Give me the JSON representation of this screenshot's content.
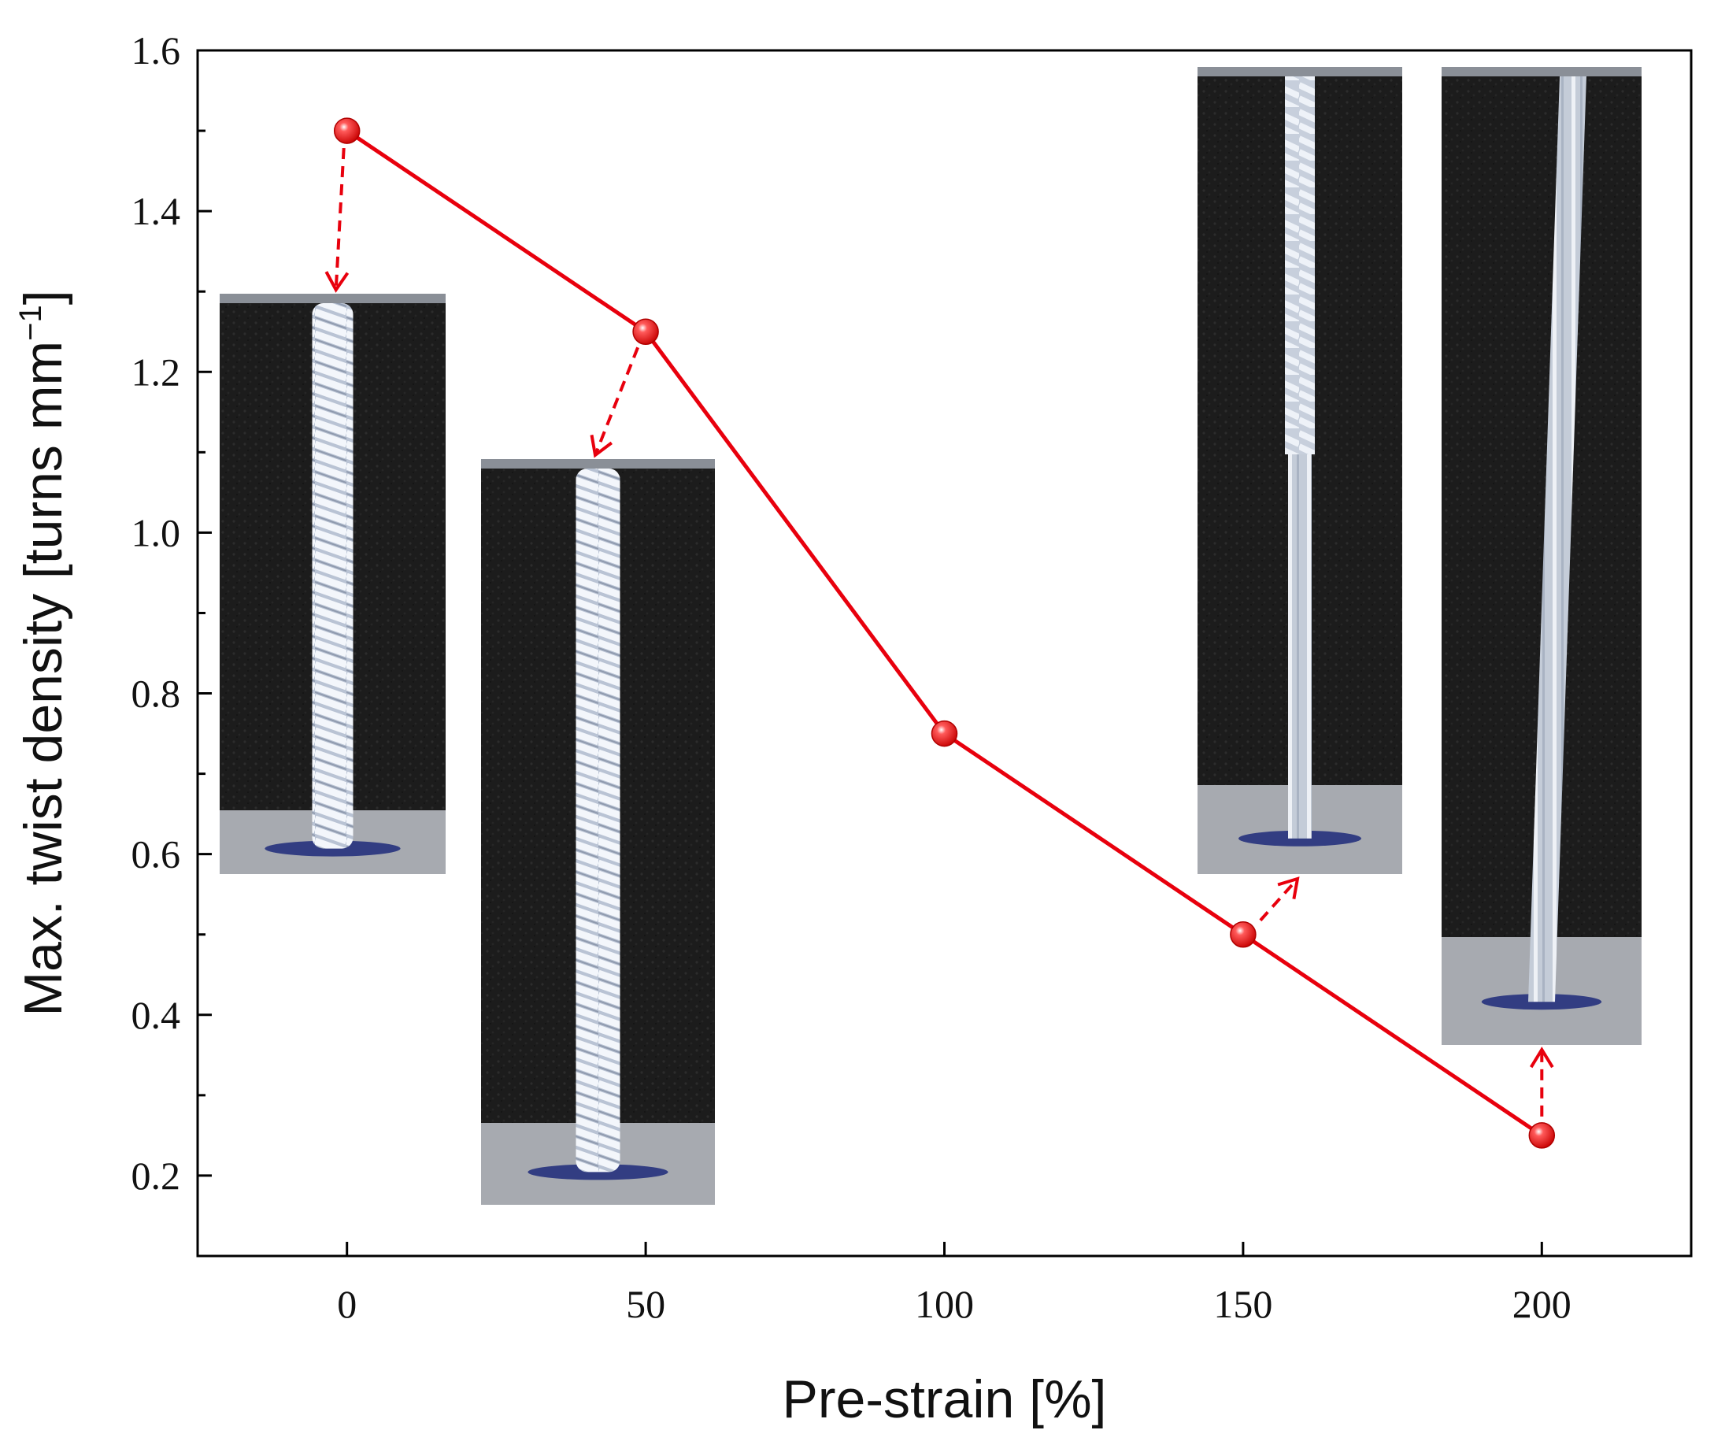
{
  "chart_data": {
    "type": "line",
    "x": [
      0,
      50,
      100,
      150,
      200
    ],
    "series": [
      {
        "values": [
          1.5,
          1.25,
          0.75,
          0.5,
          0.25
        ],
        "color": "#e8000d"
      }
    ],
    "xlabel": "Pre-strain [%]",
    "ylabel": "Max. twist density [turns mm",
    "ylabel_sup": "−1",
    "ylabel_end": "]",
    "xlim": [
      -25,
      225
    ],
    "ylim": [
      0.1,
      1.6
    ],
    "xticks": [
      0,
      50,
      100,
      150,
      200
    ],
    "xtick_labels": [
      "0",
      "50",
      "100",
      "150",
      "200"
    ],
    "yticks": [
      0.2,
      0.4,
      0.6,
      0.8,
      1.0,
      1.2,
      1.4,
      1.6
    ],
    "ytick_labels": [
      "0.2",
      "0.4",
      "0.6",
      "0.8",
      "1.0",
      "1.2",
      "1.4",
      "1.6"
    ],
    "grid": false,
    "insets": [
      {
        "name": "inset-photo-0",
        "for_x": 0,
        "twist": "tight"
      },
      {
        "name": "inset-photo-50",
        "for_x": 50,
        "twist": "tight"
      },
      {
        "name": "inset-photo-150",
        "for_x": 150,
        "twist": "partial"
      },
      {
        "name": "inset-photo-200",
        "for_x": 200,
        "twist": "none"
      }
    ]
  }
}
